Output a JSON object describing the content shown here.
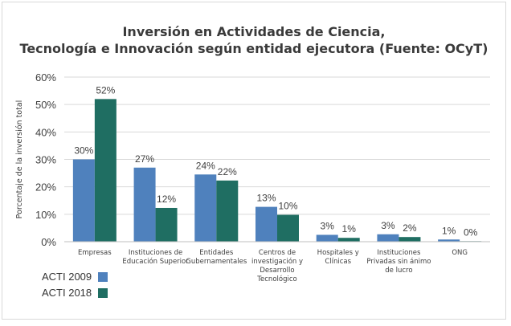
{
  "chart_data": {
    "type": "bar",
    "title_line1": "Inversión en Actividades de Ciencia,",
    "title_line2": "Tecnología e Innovación según entidad ejecutora (Fuente: OCyT)",
    "ylabel": "Porcentaje de la inversión total",
    "ylim": [
      0,
      60
    ],
    "yticks": [
      "0%",
      "10%",
      "20%",
      "30%",
      "40%",
      "50%",
      "60%"
    ],
    "grid": true,
    "legend_position": "bottom-left",
    "categories": [
      [
        "Empresas"
      ],
      [
        "Instituciones de",
        "Educación Superior"
      ],
      [
        "Entidades",
        "Gubernamentales"
      ],
      [
        "Centros de",
        "investigación y",
        "Desarrollo",
        "Tecnológico"
      ],
      [
        "Hospitales y",
        "Clínicas"
      ],
      [
        "Instituciones",
        "Privadas sin ánimo",
        "de lucro"
      ],
      [
        "ONG"
      ]
    ],
    "series": [
      {
        "name": "ACTI 2009",
        "color": "#4f81bd",
        "values": [
          30,
          27,
          24.5,
          12.7,
          2.5,
          2.7,
          0.8
        ],
        "labels": [
          "30%",
          "27%",
          "24%",
          "13%",
          "3%",
          "3%",
          "1%"
        ]
      },
      {
        "name": "ACTI 2018",
        "color": "#1f6e62",
        "values": [
          52,
          12.3,
          22.3,
          9.8,
          1.4,
          1.7,
          0.2
        ],
        "labels": [
          "52%",
          "12%",
          "22%",
          "10%",
          "1%",
          "2%",
          "0%"
        ]
      }
    ]
  }
}
